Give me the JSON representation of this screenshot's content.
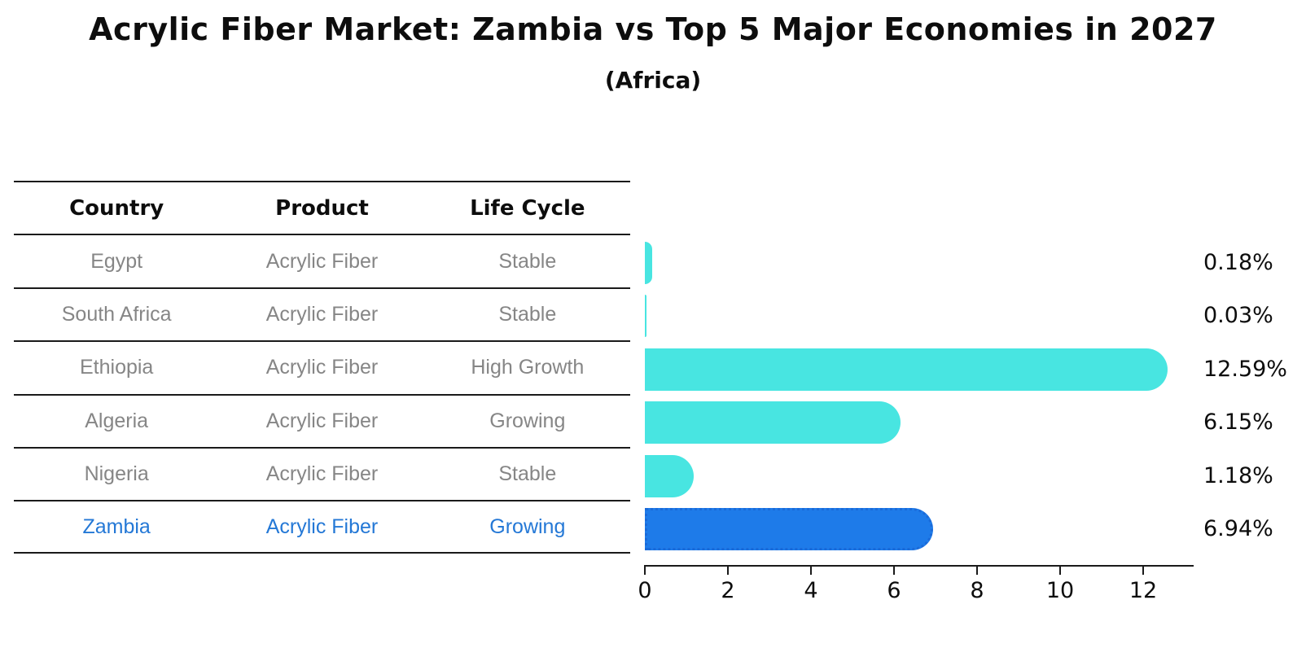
{
  "title": "Acrylic Fiber Market: Zambia vs Top 5 Major Economies in 2027",
  "subtitle": "(Africa)",
  "table": {
    "headers": [
      "Country",
      "Product",
      "Life Cycle"
    ],
    "rows": [
      {
        "country": "Egypt",
        "product": "Acrylic Fiber",
        "life_cycle": "Stable",
        "highlight": false
      },
      {
        "country": "South Africa",
        "product": "Acrylic Fiber",
        "life_cycle": "Stable",
        "highlight": false
      },
      {
        "country": "Ethiopia",
        "product": "Acrylic Fiber",
        "life_cycle": "High Growth",
        "highlight": false
      },
      {
        "country": "Algeria",
        "product": "Acrylic Fiber",
        "life_cycle": "Growing",
        "highlight": false
      },
      {
        "country": "Nigeria",
        "product": "Acrylic Fiber",
        "life_cycle": "Stable",
        "highlight": false
      },
      {
        "country": "Zambia",
        "product": "Acrylic Fiber",
        "life_cycle": "Growing",
        "highlight": true
      }
    ]
  },
  "chart_data": {
    "type": "bar",
    "orientation": "horizontal",
    "title": "Acrylic Fiber Market: Zambia vs Top 5 Major Economies in 2027 (Africa)",
    "categories": [
      "Egypt",
      "South Africa",
      "Ethiopia",
      "Algeria",
      "Nigeria",
      "Zambia"
    ],
    "values": [
      0.18,
      0.03,
      12.59,
      6.15,
      1.18,
      6.94
    ],
    "value_labels": [
      "0.18%",
      "0.03%",
      "12.59%",
      "6.15%",
      "1.18%",
      "6.94%"
    ],
    "x_ticks": [
      0,
      2,
      4,
      6,
      8,
      10,
      12
    ],
    "xlim": [
      0,
      13.2
    ],
    "grid": false,
    "legend": "none",
    "highlight_index": 5
  },
  "colors": {
    "bar_default": "#48E5E1",
    "bar_highlight": "#1E7BE9",
    "bar_highlight_border": "#1A6AD9",
    "highlight_text": "#2478d6",
    "table_text": "#868686",
    "axis_text": "#0d0d0d"
  }
}
